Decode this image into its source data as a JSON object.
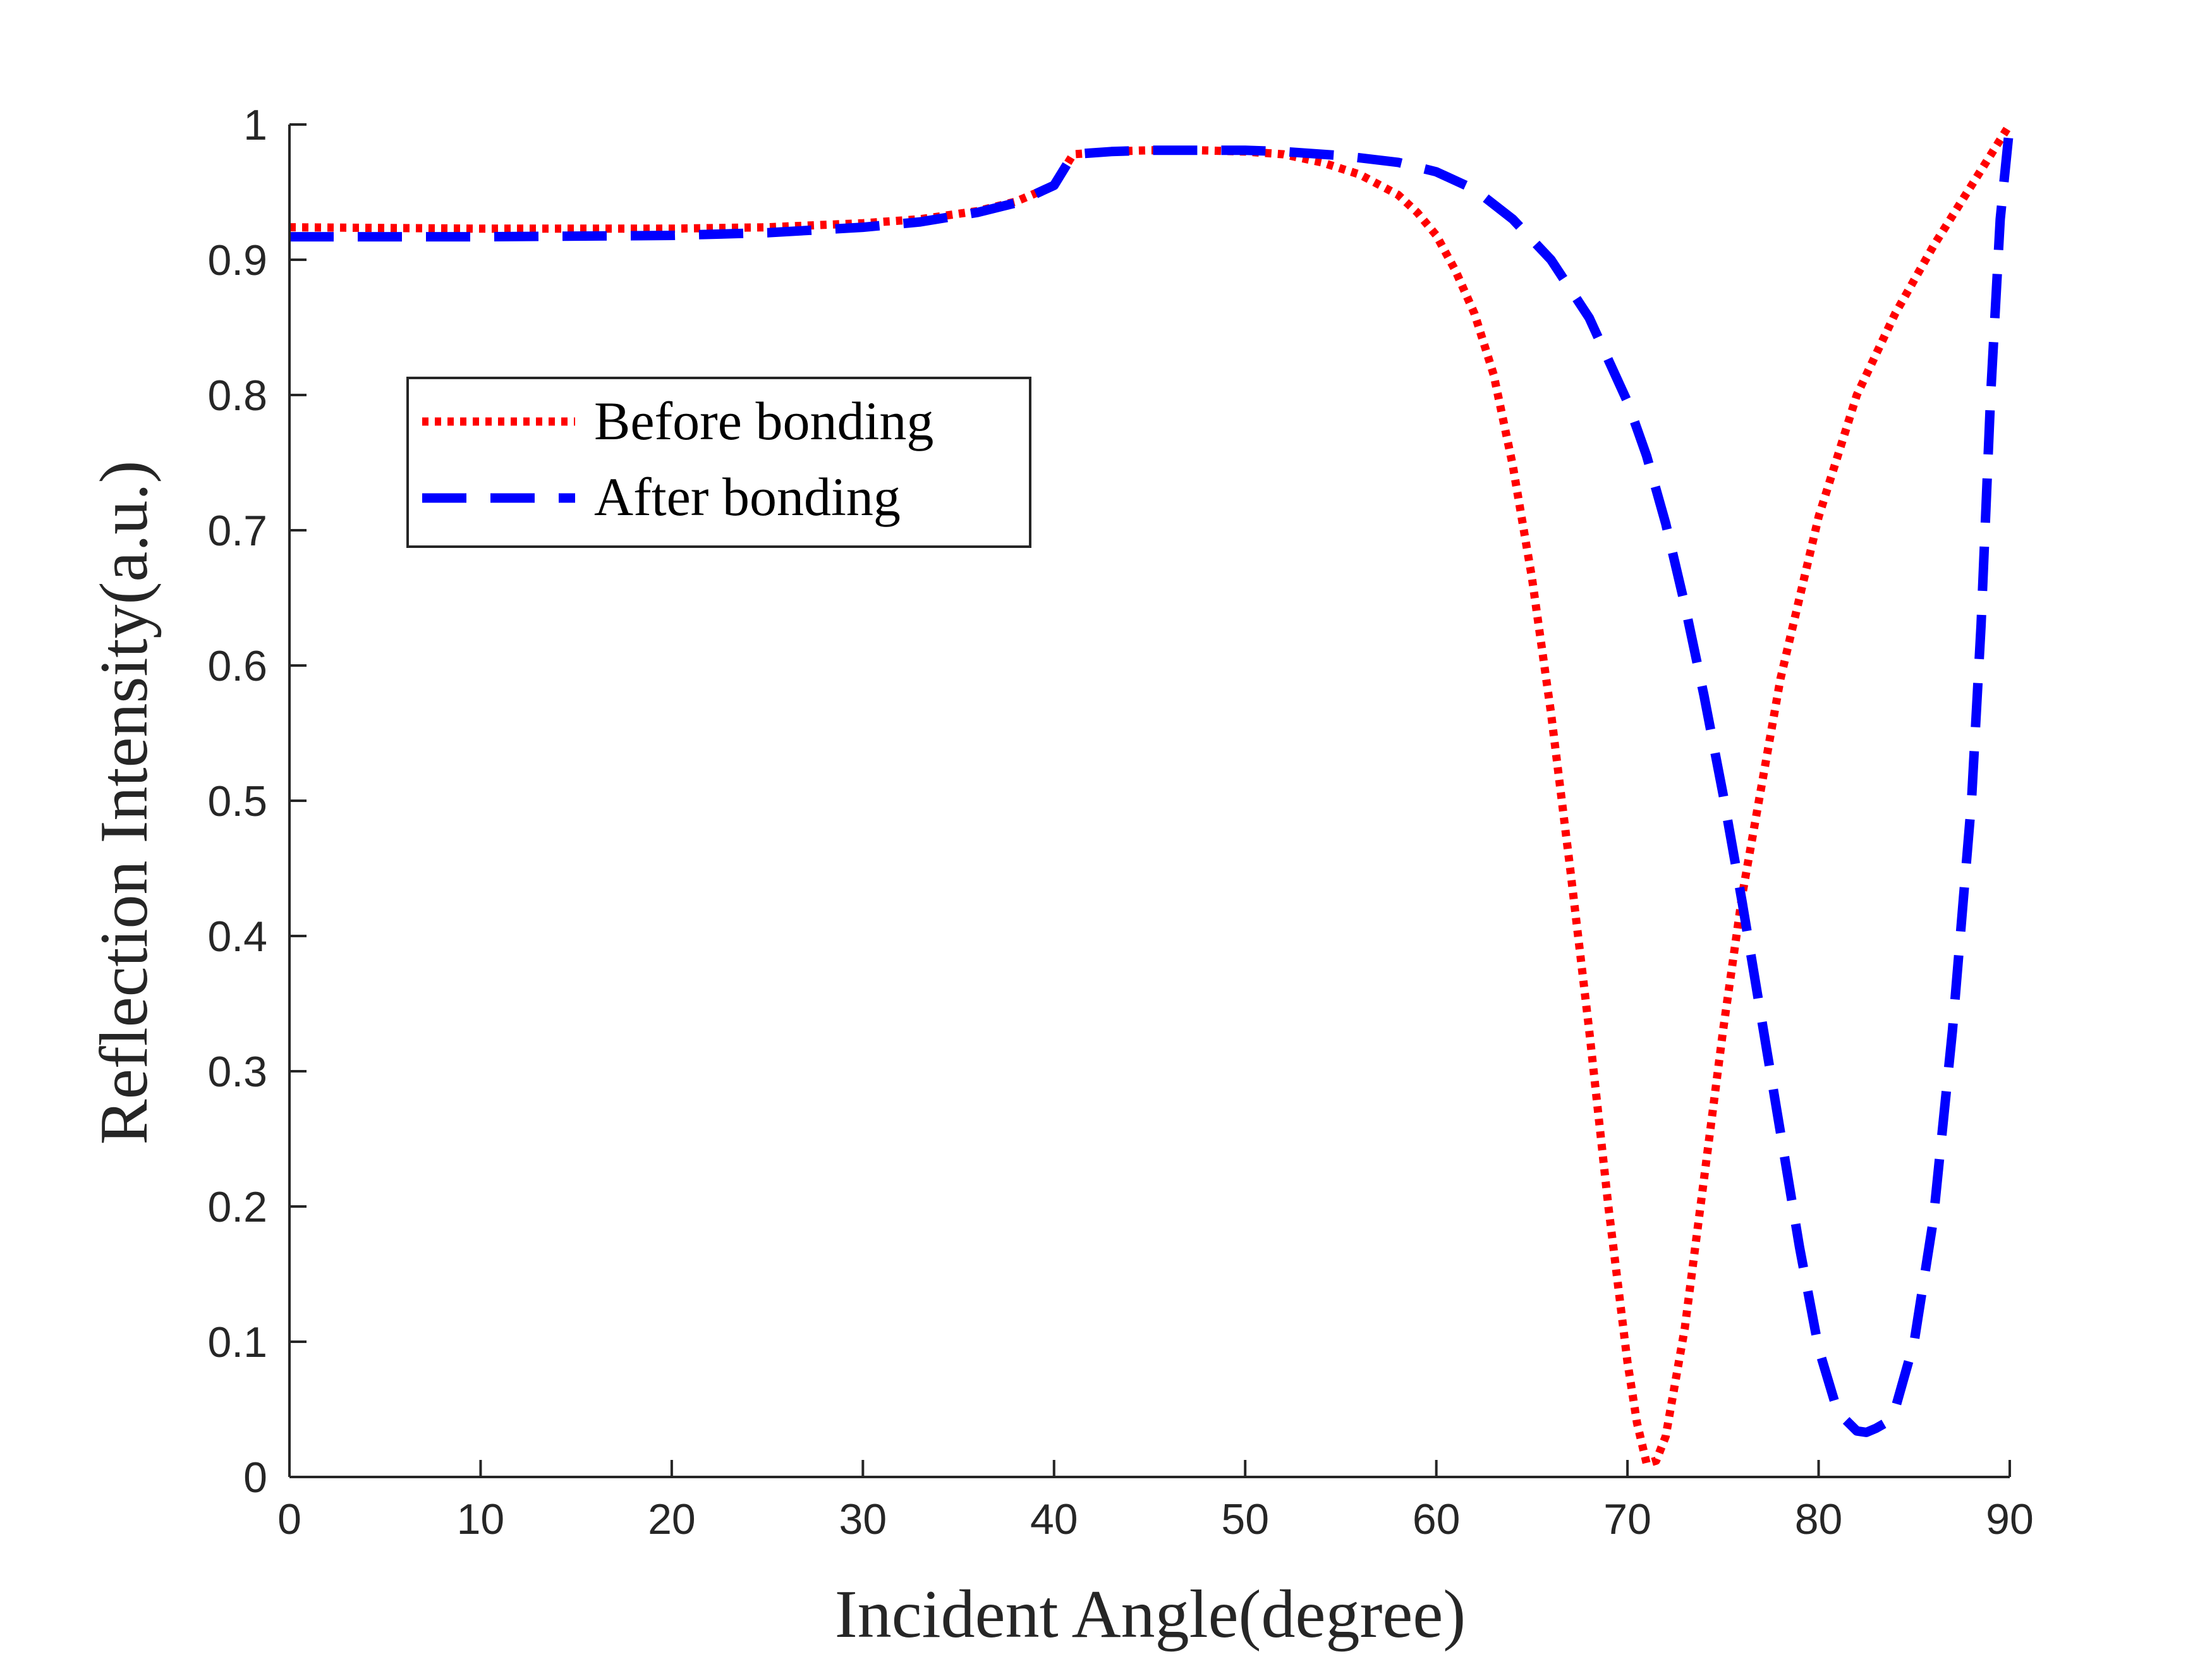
{
  "chart_data": {
    "type": "line",
    "title": "",
    "xlabel": "Incident Angle(degree)",
    "ylabel": "Reflection Intensity(a.u.)",
    "xlim": [
      0,
      90
    ],
    "ylim": [
      0,
      1
    ],
    "xticks": [
      0,
      10,
      20,
      30,
      40,
      50,
      60,
      70,
      80,
      90
    ],
    "yticks": [
      0,
      0.1,
      0.2,
      0.3,
      0.4,
      0.5,
      0.6,
      0.7,
      0.8,
      0.9,
      1
    ],
    "xtick_labels": [
      "0",
      "10",
      "20",
      "30",
      "40",
      "50",
      "60",
      "70",
      "80",
      "90"
    ],
    "ytick_labels": [
      "0",
      "0.1",
      "0.2",
      "0.3",
      "0.4",
      "0.5",
      "0.6",
      "0.7",
      "0.8",
      "0.9",
      "1"
    ],
    "grid": false,
    "legend_position": "upper-left",
    "series": [
      {
        "name": "Before bonding",
        "color": "#ff0000",
        "style": "dotted",
        "x": [
          0,
          10,
          20,
          25,
          30,
          33,
          36,
          38,
          40,
          41,
          43,
          45,
          47.5,
          50,
          52,
          54,
          56,
          58,
          59,
          60,
          61,
          62,
          63,
          64,
          65,
          66,
          67,
          68,
          69,
          70,
          70.5,
          71,
          71.5,
          72,
          73,
          74,
          75,
          76,
          78,
          80,
          82,
          84,
          86,
          88,
          90
        ],
        "y": [
          0.924,
          0.923,
          0.923,
          0.924,
          0.927,
          0.93,
          0.936,
          0.943,
          0.955,
          0.978,
          0.98,
          0.981,
          0.981,
          0.98,
          0.978,
          0.972,
          0.963,
          0.948,
          0.935,
          0.918,
          0.892,
          0.86,
          0.815,
          0.748,
          0.665,
          0.565,
          0.45,
          0.33,
          0.2,
          0.085,
          0.04,
          0.01,
          0.012,
          0.03,
          0.11,
          0.22,
          0.33,
          0.43,
          0.59,
          0.71,
          0.8,
          0.86,
          0.91,
          0.955,
          1.0
        ]
      },
      {
        "name": "After bonding",
        "color": "#0000ff",
        "style": "dashed",
        "x": [
          0,
          10,
          20,
          25,
          30,
          33,
          36,
          38,
          40,
          41,
          43,
          45,
          47.5,
          50,
          52,
          55,
          58,
          60,
          62,
          64,
          66,
          68,
          70,
          71,
          72,
          73,
          74,
          75,
          76,
          77,
          78,
          79,
          80,
          81,
          82,
          82.5,
          83,
          83.5,
          84,
          85,
          86,
          87,
          88,
          88.5,
          89,
          89.5,
          90
        ],
        "y": [
          0.917,
          0.917,
          0.918,
          0.92,
          0.924,
          0.928,
          0.935,
          0.942,
          0.955,
          0.978,
          0.98,
          0.981,
          0.981,
          0.981,
          0.98,
          0.977,
          0.972,
          0.965,
          0.952,
          0.93,
          0.9,
          0.857,
          0.795,
          0.755,
          0.705,
          0.645,
          0.578,
          0.505,
          0.425,
          0.34,
          0.255,
          0.17,
          0.095,
          0.048,
          0.034,
          0.033,
          0.036,
          0.04,
          0.05,
          0.1,
          0.19,
          0.33,
          0.5,
          0.63,
          0.8,
          0.93,
          1.0
        ]
      }
    ]
  }
}
